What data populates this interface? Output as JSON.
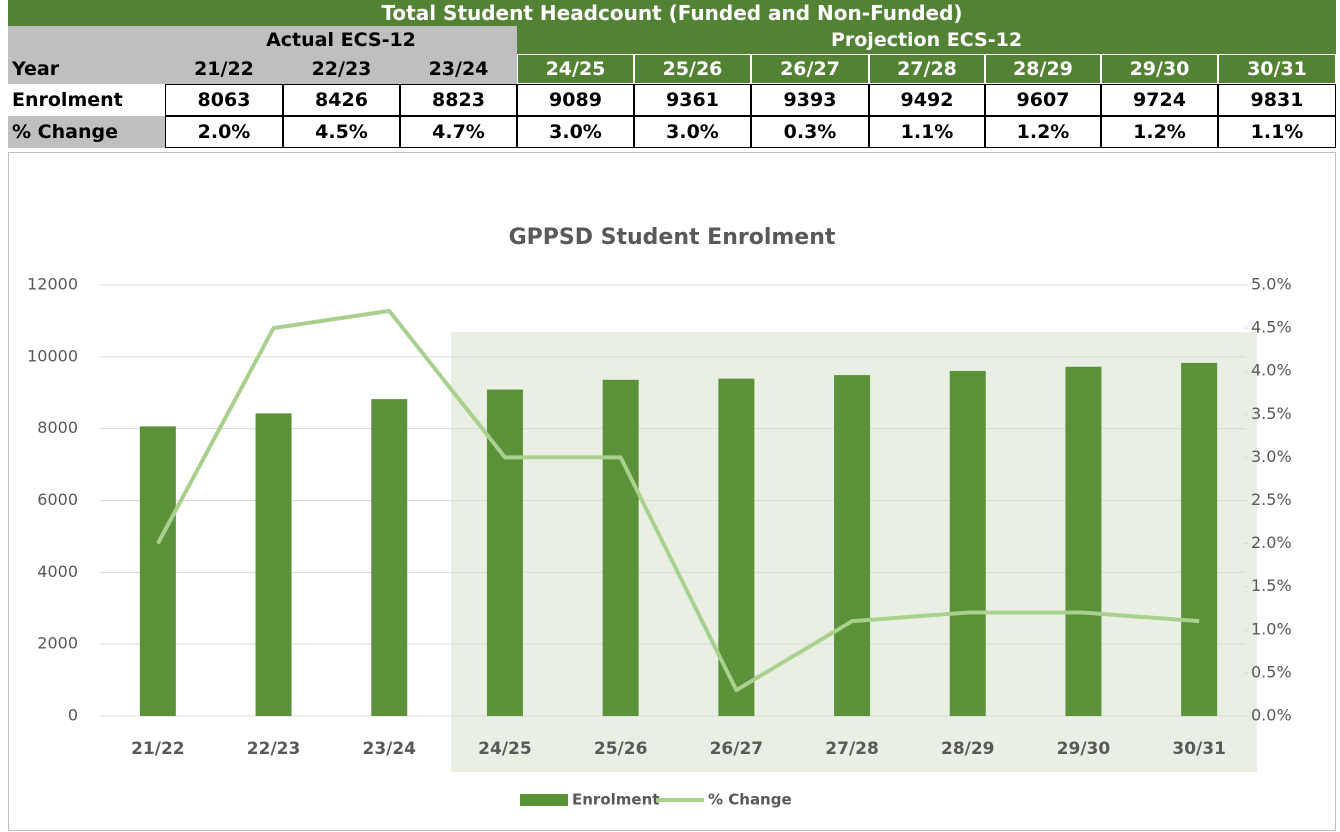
{
  "table": {
    "title": "Total Student Headcount (Funded and Non-Funded)",
    "groups": [
      "Actual ECS-12",
      "Projection ECS-12"
    ],
    "rows": [
      [
        "Year",
        "21/22",
        "22/23",
        "23/24",
        "24/25",
        "25/26",
        "26/27",
        "27/28",
        "28/29",
        "29/30",
        "30/31"
      ],
      [
        "Enrolment",
        "8063",
        "8426",
        "8823",
        "9089",
        "9361",
        "9393",
        "9492",
        "9607",
        "9724",
        "9831"
      ],
      [
        "% Change",
        "2.0%",
        "4.5%",
        "4.7%",
        "3.0%",
        "3.0%",
        "0.3%",
        "1.1%",
        "1.2%",
        "1.2%",
        "1.1%"
      ]
    ]
  },
  "chart_data": {
    "type": "bar",
    "title": "GPPSD Student Enrolment",
    "categories": [
      "21/22",
      "22/23",
      "23/24",
      "24/25",
      "25/26",
      "26/27",
      "27/28",
      "28/29",
      "29/30",
      "30/31"
    ],
    "series": [
      {
        "name": "Enrolment",
        "type": "bar",
        "color": "#5b9138",
        "values": [
          8063,
          8426,
          8823,
          9089,
          9361,
          9393,
          9492,
          9607,
          9724,
          9831
        ]
      },
      {
        "name": "% Change",
        "type": "line",
        "axis": "y2",
        "color": "#a9d08e",
        "values": [
          2.0,
          4.5,
          4.7,
          3.0,
          3.0,
          0.3,
          1.1,
          1.2,
          1.2,
          1.1
        ]
      }
    ],
    "ylim": [
      0,
      12000
    ],
    "yticks": [
      0,
      2000,
      4000,
      6000,
      8000,
      10000,
      12000
    ],
    "y2lim": [
      0,
      5
    ],
    "y2ticks": [
      {
        "value": 0,
        "label": "0.0%"
      },
      {
        "value": 0.5,
        "label": "0.5%"
      },
      {
        "value": 1,
        "label": "1.0%"
      },
      {
        "value": 1.5,
        "label": "1.5%"
      },
      {
        "value": 2,
        "label": "2.0%"
      },
      {
        "value": 2.5,
        "label": "2.5%"
      },
      {
        "value": 3,
        "label": "3.0%"
      },
      {
        "value": 3.5,
        "label": "3.5%"
      },
      {
        "value": 4,
        "label": "4.0%"
      },
      {
        "value": 4.5,
        "label": "4.5%"
      },
      {
        "value": 5,
        "label": "5.0%"
      }
    ],
    "grid": true,
    "legend": "bottom"
  }
}
